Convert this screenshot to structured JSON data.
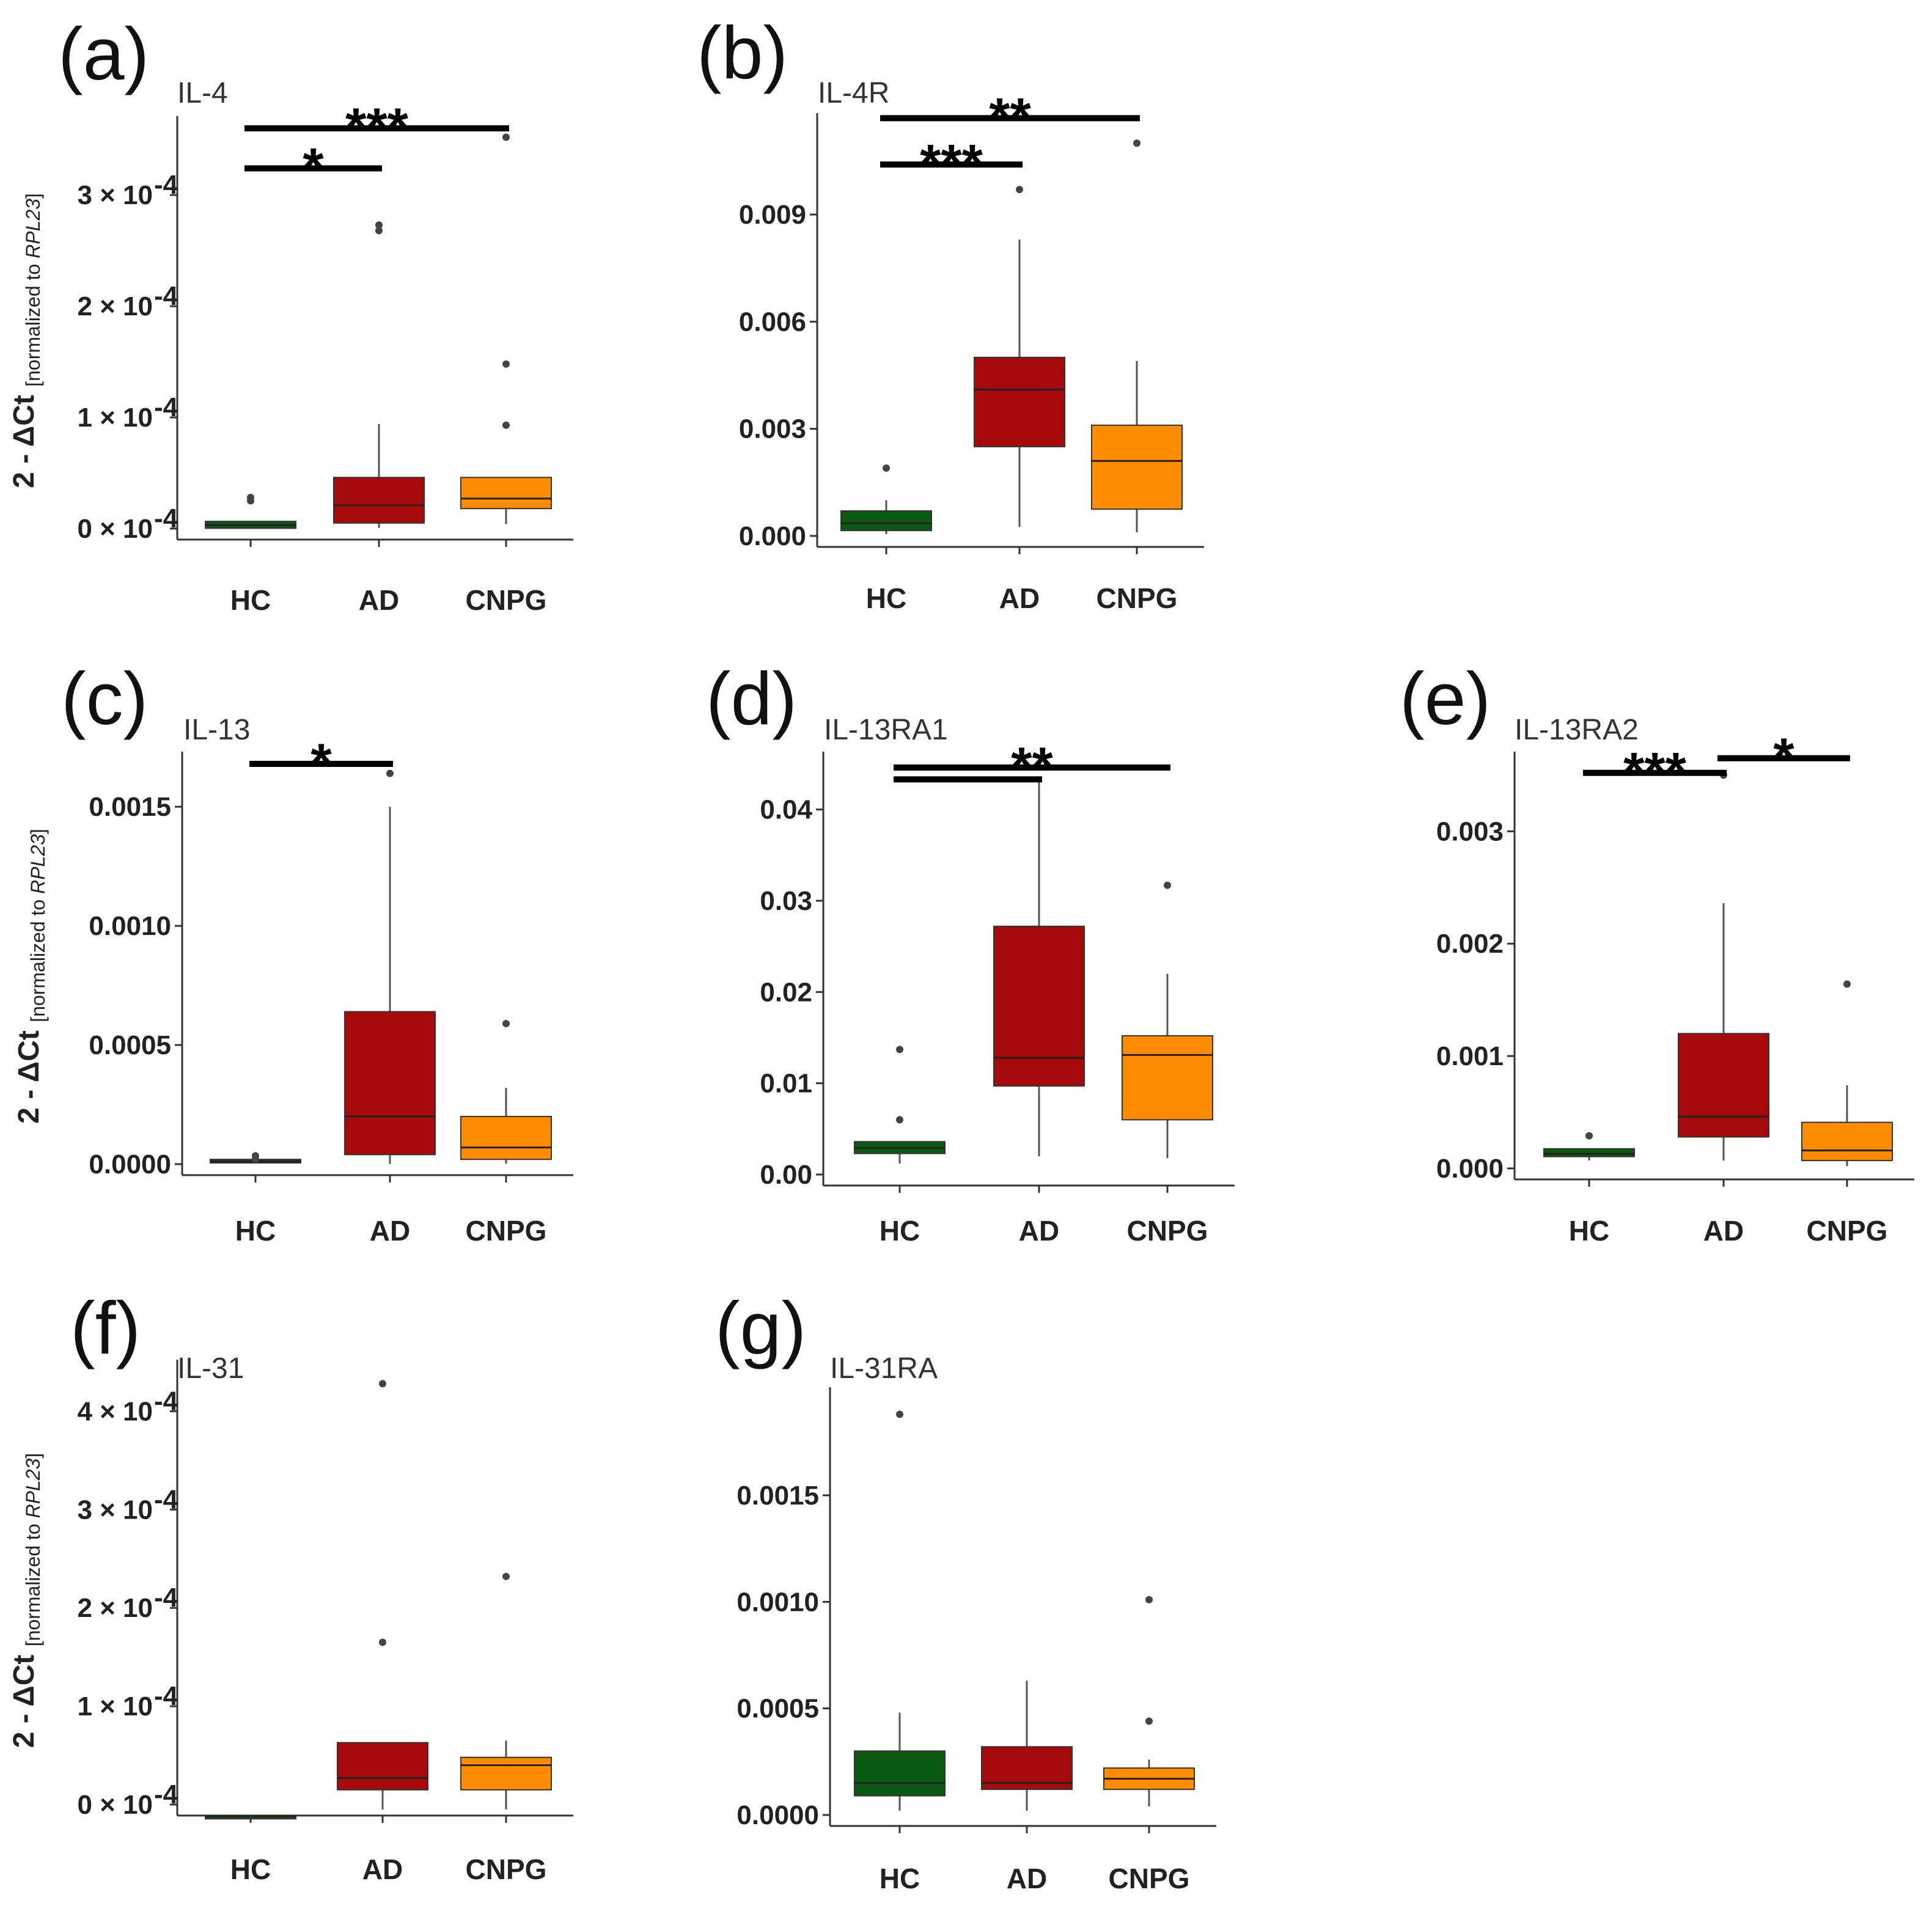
{
  "figure": {
    "description_free": true
  },
  "colors": {
    "HC": "#0b5a12",
    "AD": "#a60a0a",
    "CNPG": "#ff8c00",
    "axis": "#333333",
    "median": "#222222",
    "outlier": "#444444",
    "sig": "#000000"
  },
  "ylabel": {
    "main": "2 - ΔCt",
    "sub_prefix": "[normalized to ",
    "sub_gene": "RPL23",
    "sub_suffix": "]"
  },
  "chart_data": [
    {
      "type": "box",
      "panel": "(a)",
      "gene": "IL-4",
      "categories": [
        "HC",
        "AD",
        "CNPG"
      ],
      "ylim": [
        0,
        0.00036
      ],
      "ticks": [
        {
          "v": 0,
          "label": "0 × 10",
          "exp": "-4"
        },
        {
          "v": 0.0001,
          "label": "1 × 10",
          "exp": "-4"
        },
        {
          "v": 0.0002,
          "label": "2 × 10",
          "exp": "-4"
        },
        {
          "v": 0.0003,
          "label": "3 × 10",
          "exp": "-4"
        }
      ],
      "boxes": [
        {
          "q1": 3e-07,
          "median": 3e-06,
          "q3": 6.5e-06,
          "lo": 3e-07,
          "hi": 6.5e-06,
          "out": [
            2.8e-05,
            2.5e-05
          ]
        },
        {
          "q1": 5e-06,
          "median": 2.1e-05,
          "q3": 4.6e-05,
          "lo": 5e-07,
          "hi": 9.4e-05,
          "out": [
            0.000268,
            0.000273
          ]
        },
        {
          "q1": 1.8e-05,
          "median": 2.7e-05,
          "q3": 4.6e-05,
          "lo": 4e-06,
          "hi": 4.6e-05,
          "out": [
            9.3e-05,
            0.000148,
            0.000352
          ]
        }
      ],
      "sig": [
        {
          "from": 0,
          "to": 1,
          "y": 0.000324,
          "label": "*"
        },
        {
          "from": 0,
          "to": 2,
          "y": 0.00036,
          "label": "***"
        }
      ]
    },
    {
      "type": "box",
      "panel": "(b)",
      "gene": "IL-4R",
      "categories": [
        "HC",
        "AD",
        "CNPG"
      ],
      "ylim": [
        0,
        0.0115
      ],
      "ticks": [
        {
          "v": 0,
          "label": "0.000"
        },
        {
          "v": 0.003,
          "label": "0.003"
        },
        {
          "v": 0.006,
          "label": "0.006"
        },
        {
          "v": 0.009,
          "label": "0.009"
        }
      ],
      "boxes": [
        {
          "q1": 0.00015,
          "median": 0.00035,
          "q3": 0.0007,
          "lo": 5e-05,
          "hi": 0.001,
          "out": [
            0.0019
          ]
        },
        {
          "q1": 0.0025,
          "median": 0.0041,
          "q3": 0.005,
          "lo": 0.00025,
          "hi": 0.0083,
          "out": [
            0.0097
          ]
        },
        {
          "q1": 0.00075,
          "median": 0.0021,
          "q3": 0.0031,
          "lo": 0.0001,
          "hi": 0.0049,
          "out": [
            0.011
          ]
        }
      ],
      "sig": [
        {
          "from": 0,
          "to": 1,
          "y": 0.0104,
          "label": "***"
        },
        {
          "from": 0,
          "to": 2,
          "y": 0.0117,
          "label": "**"
        }
      ]
    },
    {
      "type": "box",
      "panel": "(c)",
      "gene": "IL-13",
      "categories": [
        "HC",
        "AD",
        "CNPG"
      ],
      "ylim": [
        0,
        0.00168
      ],
      "ticks": [
        {
          "v": 0,
          "label": "0.0000"
        },
        {
          "v": 0.0005,
          "label": "0.0005"
        },
        {
          "v": 0.001,
          "label": "0.0010"
        },
        {
          "v": 0.0015,
          "label": "0.0015"
        }
      ],
      "boxes": [
        {
          "q1": 5e-06,
          "median": 1.2e-05,
          "q3": 2e-05,
          "lo": 5e-06,
          "hi": 2e-05,
          "out": [
            2e-05,
            3.5e-05
          ]
        },
        {
          "q1": 4e-05,
          "median": 0.0002,
          "q3": 0.00064,
          "lo": 5e-07,
          "hi": 0.0015,
          "out": [
            0.00164
          ]
        },
        {
          "q1": 2e-05,
          "median": 7e-05,
          "q3": 0.0002,
          "lo": 2e-06,
          "hi": 0.00032,
          "out": [
            0.00059
          ]
        }
      ],
      "sig": [
        {
          "from": 0,
          "to": 1,
          "y": 0.00168,
          "label": "*"
        }
      ]
    },
    {
      "type": "box",
      "panel": "(d)",
      "gene": "IL-13RA1",
      "categories": [
        "HC",
        "AD",
        "CNPG"
      ],
      "ylim": [
        0,
        0.045
      ],
      "ticks": [
        {
          "v": 0,
          "label": "0.00"
        },
        {
          "v": 0.01,
          "label": "0.01"
        },
        {
          "v": 0.02,
          "label": "0.02"
        },
        {
          "v": 0.03,
          "label": "0.03"
        },
        {
          "v": 0.04,
          "label": "0.04"
        }
      ],
      "boxes": [
        {
          "q1": 0.0023,
          "median": 0.0029,
          "q3": 0.0036,
          "lo": 0.0012,
          "hi": 0.0036,
          "out": [
            0.006,
            0.0137
          ]
        },
        {
          "q1": 0.0097,
          "median": 0.0128,
          "q3": 0.0272,
          "lo": 0.002,
          "hi": 0.0431,
          "out": []
        },
        {
          "q1": 0.006,
          "median": 0.0131,
          "q3": 0.0152,
          "lo": 0.0018,
          "hi": 0.022,
          "out": [
            0.0317
          ]
        }
      ],
      "sig": [
        {
          "from": 0,
          "to": 1,
          "y": 0.0433,
          "label": ""
        },
        {
          "from": 0,
          "to": 2,
          "y": 0.0446,
          "label": "**"
        }
      ]
    },
    {
      "type": "box",
      "panel": "(e)",
      "gene": "IL-13RA2",
      "categories": [
        "HC",
        "AD",
        "CNPG"
      ],
      "ylim": [
        0,
        0.0036
      ],
      "ticks": [
        {
          "v": 0,
          "label": "0.000"
        },
        {
          "v": 0.001,
          "label": "0.001"
        },
        {
          "v": 0.002,
          "label": "0.002"
        },
        {
          "v": 0.003,
          "label": "0.003"
        }
      ],
      "boxes": [
        {
          "q1": 0.000105,
          "median": 0.00013,
          "q3": 0.000175,
          "lo": 7e-05,
          "hi": 0.000175,
          "out": [
            0.00029
          ]
        },
        {
          "q1": 0.00028,
          "median": 0.00046,
          "q3": 0.0012,
          "lo": 7e-05,
          "hi": 0.00236,
          "out": [
            0.0035
          ]
        },
        {
          "q1": 7e-05,
          "median": 0.00016,
          "q3": 0.00041,
          "lo": 2e-05,
          "hi": 0.00074,
          "out": [
            0.00164
          ]
        }
      ],
      "sig": [
        {
          "from": 0,
          "to": 1,
          "y": 0.00352,
          "label": "***"
        },
        {
          "from": 1,
          "to": 2,
          "y": 0.00365,
          "label": "*"
        }
      ]
    },
    {
      "type": "box",
      "panel": "(f)",
      "gene": "IL-31",
      "categories": [
        "HC",
        "AD",
        "CNPG"
      ],
      "ylim": [
        0,
        0.00044
      ],
      "ticks": [
        {
          "v": 0,
          "label": "0 × 10",
          "exp": "-4"
        },
        {
          "v": 0.0001,
          "label": "1 × 10",
          "exp": "-4"
        },
        {
          "v": 0.0002,
          "label": "2 × 10",
          "exp": "-4"
        },
        {
          "v": 0.0003,
          "label": "3 × 10",
          "exp": "-4"
        },
        {
          "v": 0.0004,
          "label": "4 × 10",
          "exp": "-4"
        }
      ],
      "boxes": [
        {
          "q1": -1.2e-05,
          "median": -1.2e-05,
          "q3": -1.2e-05,
          "lo": -1.2e-05,
          "hi": -1.2e-05,
          "out": []
        },
        {
          "q1": 1.5e-05,
          "median": 2.7e-05,
          "q3": 6.3e-05,
          "lo": -5e-06,
          "hi": 6.3e-05,
          "out": [
            0.000165,
            0.000428
          ]
        },
        {
          "q1": 1.5e-05,
          "median": 4e-05,
          "q3": 4.8e-05,
          "lo": -5e-06,
          "hi": 6.5e-05,
          "out": [
            0.000232
          ]
        }
      ],
      "sig": []
    },
    {
      "type": "box",
      "panel": "(g)",
      "gene": "IL-31RA",
      "categories": [
        "HC",
        "AD",
        "CNPG"
      ],
      "ylim": [
        0,
        0.00195
      ],
      "ticks": [
        {
          "v": 0,
          "label": "0.0000"
        },
        {
          "v": 0.0005,
          "label": "0.0005"
        },
        {
          "v": 0.001,
          "label": "0.0010"
        },
        {
          "v": 0.0015,
          "label": "0.0015"
        }
      ],
      "boxes": [
        {
          "q1": 9e-05,
          "median": 0.00015,
          "q3": 0.0003,
          "lo": 2e-05,
          "hi": 0.00048,
          "out": [
            0.00188
          ]
        },
        {
          "q1": 0.00012,
          "median": 0.00015,
          "q3": 0.00032,
          "lo": 2e-05,
          "hi": 0.00063,
          "out": []
        },
        {
          "q1": 0.00012,
          "median": 0.00017,
          "q3": 0.00022,
          "lo": 4e-05,
          "hi": 0.00026,
          "out": [
            0.00044,
            0.00101
          ]
        }
      ],
      "sig": []
    }
  ]
}
